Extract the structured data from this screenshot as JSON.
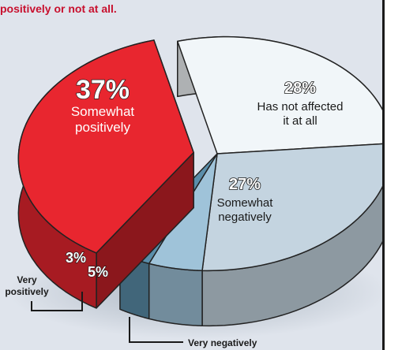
{
  "header": {
    "subtitle": "positively or not at all."
  },
  "chart_data": {
    "type": "pie",
    "title": "positively or not at all.",
    "slices": [
      {
        "label": "Somewhat positively",
        "label_lines": [
          "Somewhat",
          "positively"
        ],
        "value": 37,
        "value_text": "37%",
        "color": "#e8262f"
      },
      {
        "label": "Has not affected it at all",
        "label_lines": [
          "Has not affected",
          "it at all"
        ],
        "value": 28,
        "value_text": "28%",
        "color": "#f1f6f9"
      },
      {
        "label": "Somewhat negatively",
        "label_lines": [
          "Somewhat",
          "negatively"
        ],
        "value": 27,
        "value_text": "27%",
        "color": "#c4d4e0"
      },
      {
        "label": "Very negatively",
        "label_lines": [
          "Very negatively"
        ],
        "value": 5,
        "value_text": "5%",
        "color": "#9fc3d9"
      },
      {
        "label": "Very positively",
        "label_lines": [
          "Very",
          "positively"
        ],
        "value": 3,
        "value_text": "3%",
        "color": "#5a8eaa"
      }
    ]
  },
  "colors": {
    "accent_red": "#c8102e",
    "panel_background": "#dfe4ec"
  }
}
